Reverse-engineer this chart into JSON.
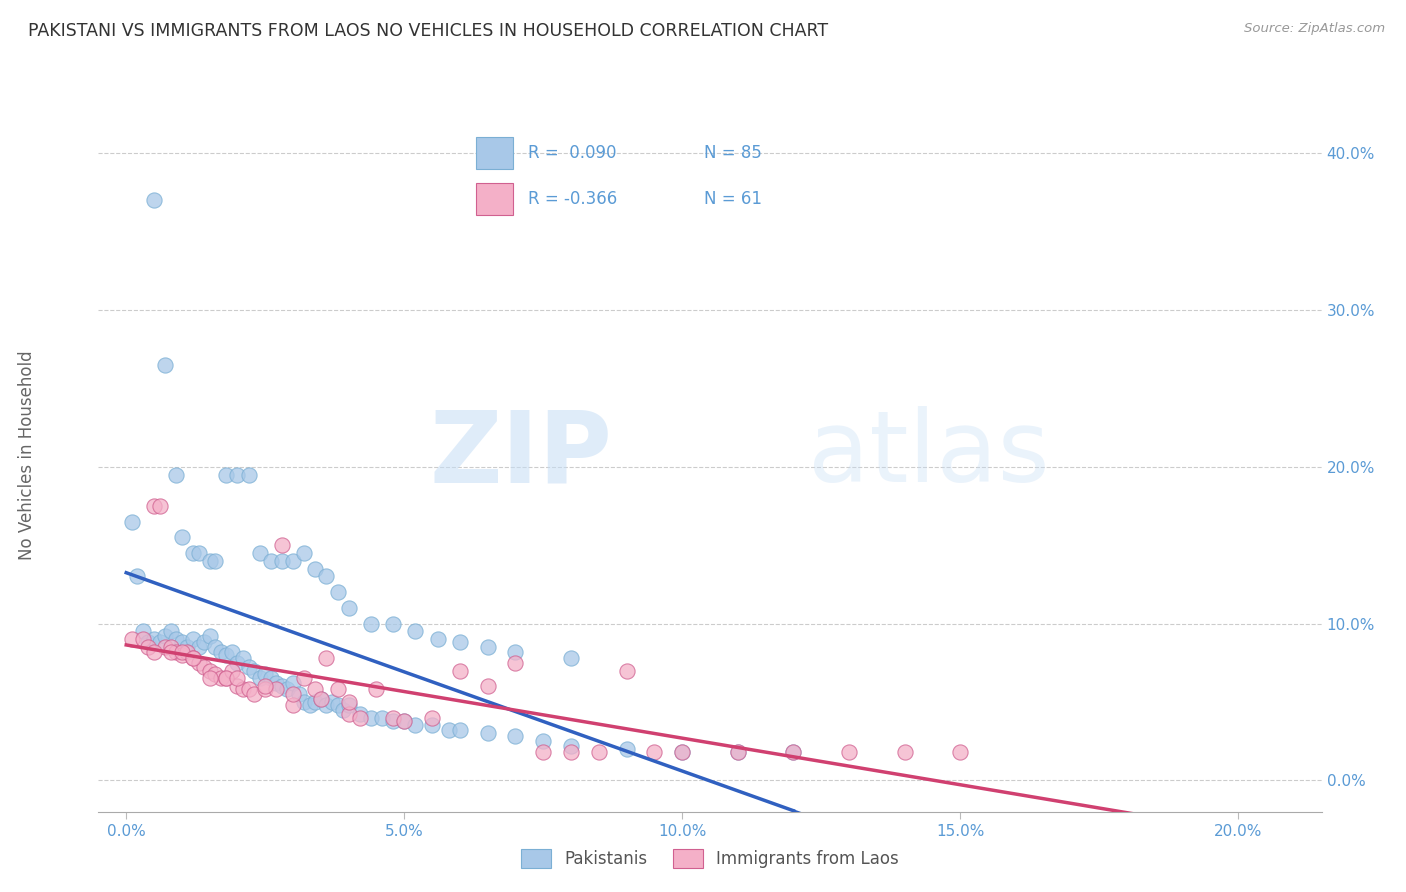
{
  "title": "PAKISTANI VS IMMIGRANTS FROM LAOS NO VEHICLES IN HOUSEHOLD CORRELATION CHART",
  "source": "Source: ZipAtlas.com",
  "xlabel_ticks": [
    "0.0%",
    "5.0%",
    "10.0%",
    "15.0%",
    "20.0%"
  ],
  "xlabel_vals": [
    0.0,
    0.05,
    0.1,
    0.15,
    0.2
  ],
  "ylabel_ticks": [
    "0.0%",
    "10.0%",
    "20.0%",
    "30.0%",
    "40.0%"
  ],
  "ylabel_vals": [
    0.0,
    0.1,
    0.2,
    0.3,
    0.4
  ],
  "xlim": [
    -0.005,
    0.215
  ],
  "ylim": [
    -0.02,
    0.435
  ],
  "pakistani_color": "#a8c8e8",
  "laos_color": "#f4b0c8",
  "pakistani_edge": "#7bafd4",
  "laos_edge": "#d06090",
  "trendline_pakistani_color": "#3060c0",
  "trendline_laos_color": "#d04070",
  "R_pakistani": 0.09,
  "N_pakistani": 85,
  "R_laos": -0.366,
  "N_laos": 61,
  "legend_label_1": "Pakistanis",
  "legend_label_2": "Immigrants from Laos",
  "ylabel": "No Vehicles in Household",
  "watermark_zip": "ZIP",
  "watermark_atlas": "atlas",
  "pakistani_x": [
    0.001,
    0.002,
    0.003,
    0.004,
    0.005,
    0.006,
    0.007,
    0.008,
    0.009,
    0.01,
    0.011,
    0.012,
    0.013,
    0.014,
    0.015,
    0.016,
    0.017,
    0.018,
    0.019,
    0.02,
    0.021,
    0.022,
    0.023,
    0.024,
    0.025,
    0.026,
    0.027,
    0.028,
    0.029,
    0.03,
    0.031,
    0.032,
    0.033,
    0.034,
    0.035,
    0.036,
    0.037,
    0.038,
    0.039,
    0.04,
    0.042,
    0.044,
    0.046,
    0.048,
    0.05,
    0.052,
    0.055,
    0.058,
    0.06,
    0.065,
    0.07,
    0.075,
    0.08,
    0.09,
    0.1,
    0.11,
    0.12,
    0.005,
    0.007,
    0.009,
    0.01,
    0.012,
    0.013,
    0.015,
    0.016,
    0.018,
    0.02,
    0.022,
    0.024,
    0.026,
    0.028,
    0.03,
    0.032,
    0.034,
    0.036,
    0.038,
    0.04,
    0.044,
    0.048,
    0.052,
    0.056,
    0.06,
    0.065,
    0.07,
    0.08
  ],
  "pakistani_y": [
    0.165,
    0.13,
    0.095,
    0.088,
    0.09,
    0.088,
    0.092,
    0.095,
    0.09,
    0.088,
    0.085,
    0.09,
    0.085,
    0.088,
    0.092,
    0.085,
    0.082,
    0.08,
    0.082,
    0.075,
    0.078,
    0.072,
    0.07,
    0.065,
    0.068,
    0.065,
    0.062,
    0.06,
    0.058,
    0.062,
    0.055,
    0.05,
    0.048,
    0.05,
    0.052,
    0.048,
    0.05,
    0.048,
    0.045,
    0.048,
    0.042,
    0.04,
    0.04,
    0.038,
    0.038,
    0.035,
    0.035,
    0.032,
    0.032,
    0.03,
    0.028,
    0.025,
    0.022,
    0.02,
    0.018,
    0.018,
    0.018,
    0.37,
    0.265,
    0.195,
    0.155,
    0.145,
    0.145,
    0.14,
    0.14,
    0.195,
    0.195,
    0.195,
    0.145,
    0.14,
    0.14,
    0.14,
    0.145,
    0.135,
    0.13,
    0.12,
    0.11,
    0.1,
    0.1,
    0.095,
    0.09,
    0.088,
    0.085,
    0.082,
    0.078
  ],
  "laos_x": [
    0.001,
    0.003,
    0.004,
    0.005,
    0.006,
    0.007,
    0.008,
    0.009,
    0.01,
    0.011,
    0.012,
    0.013,
    0.014,
    0.015,
    0.016,
    0.017,
    0.018,
    0.019,
    0.02,
    0.021,
    0.022,
    0.023,
    0.025,
    0.027,
    0.028,
    0.03,
    0.032,
    0.034,
    0.036,
    0.038,
    0.04,
    0.042,
    0.045,
    0.048,
    0.05,
    0.055,
    0.06,
    0.065,
    0.07,
    0.075,
    0.08,
    0.085,
    0.09,
    0.095,
    0.1,
    0.11,
    0.12,
    0.13,
    0.14,
    0.15,
    0.005,
    0.008,
    0.01,
    0.012,
    0.015,
    0.018,
    0.02,
    0.025,
    0.03,
    0.035,
    0.04
  ],
  "laos_y": [
    0.09,
    0.09,
    0.085,
    0.175,
    0.175,
    0.085,
    0.085,
    0.082,
    0.08,
    0.082,
    0.078,
    0.075,
    0.072,
    0.07,
    0.068,
    0.065,
    0.065,
    0.07,
    0.06,
    0.058,
    0.058,
    0.055,
    0.058,
    0.058,
    0.15,
    0.048,
    0.065,
    0.058,
    0.078,
    0.058,
    0.042,
    0.04,
    0.058,
    0.04,
    0.038,
    0.04,
    0.07,
    0.06,
    0.075,
    0.018,
    0.018,
    0.018,
    0.07,
    0.018,
    0.018,
    0.018,
    0.018,
    0.018,
    0.018,
    0.018,
    0.082,
    0.082,
    0.082,
    0.078,
    0.065,
    0.065,
    0.065,
    0.06,
    0.055,
    0.052,
    0.05
  ]
}
